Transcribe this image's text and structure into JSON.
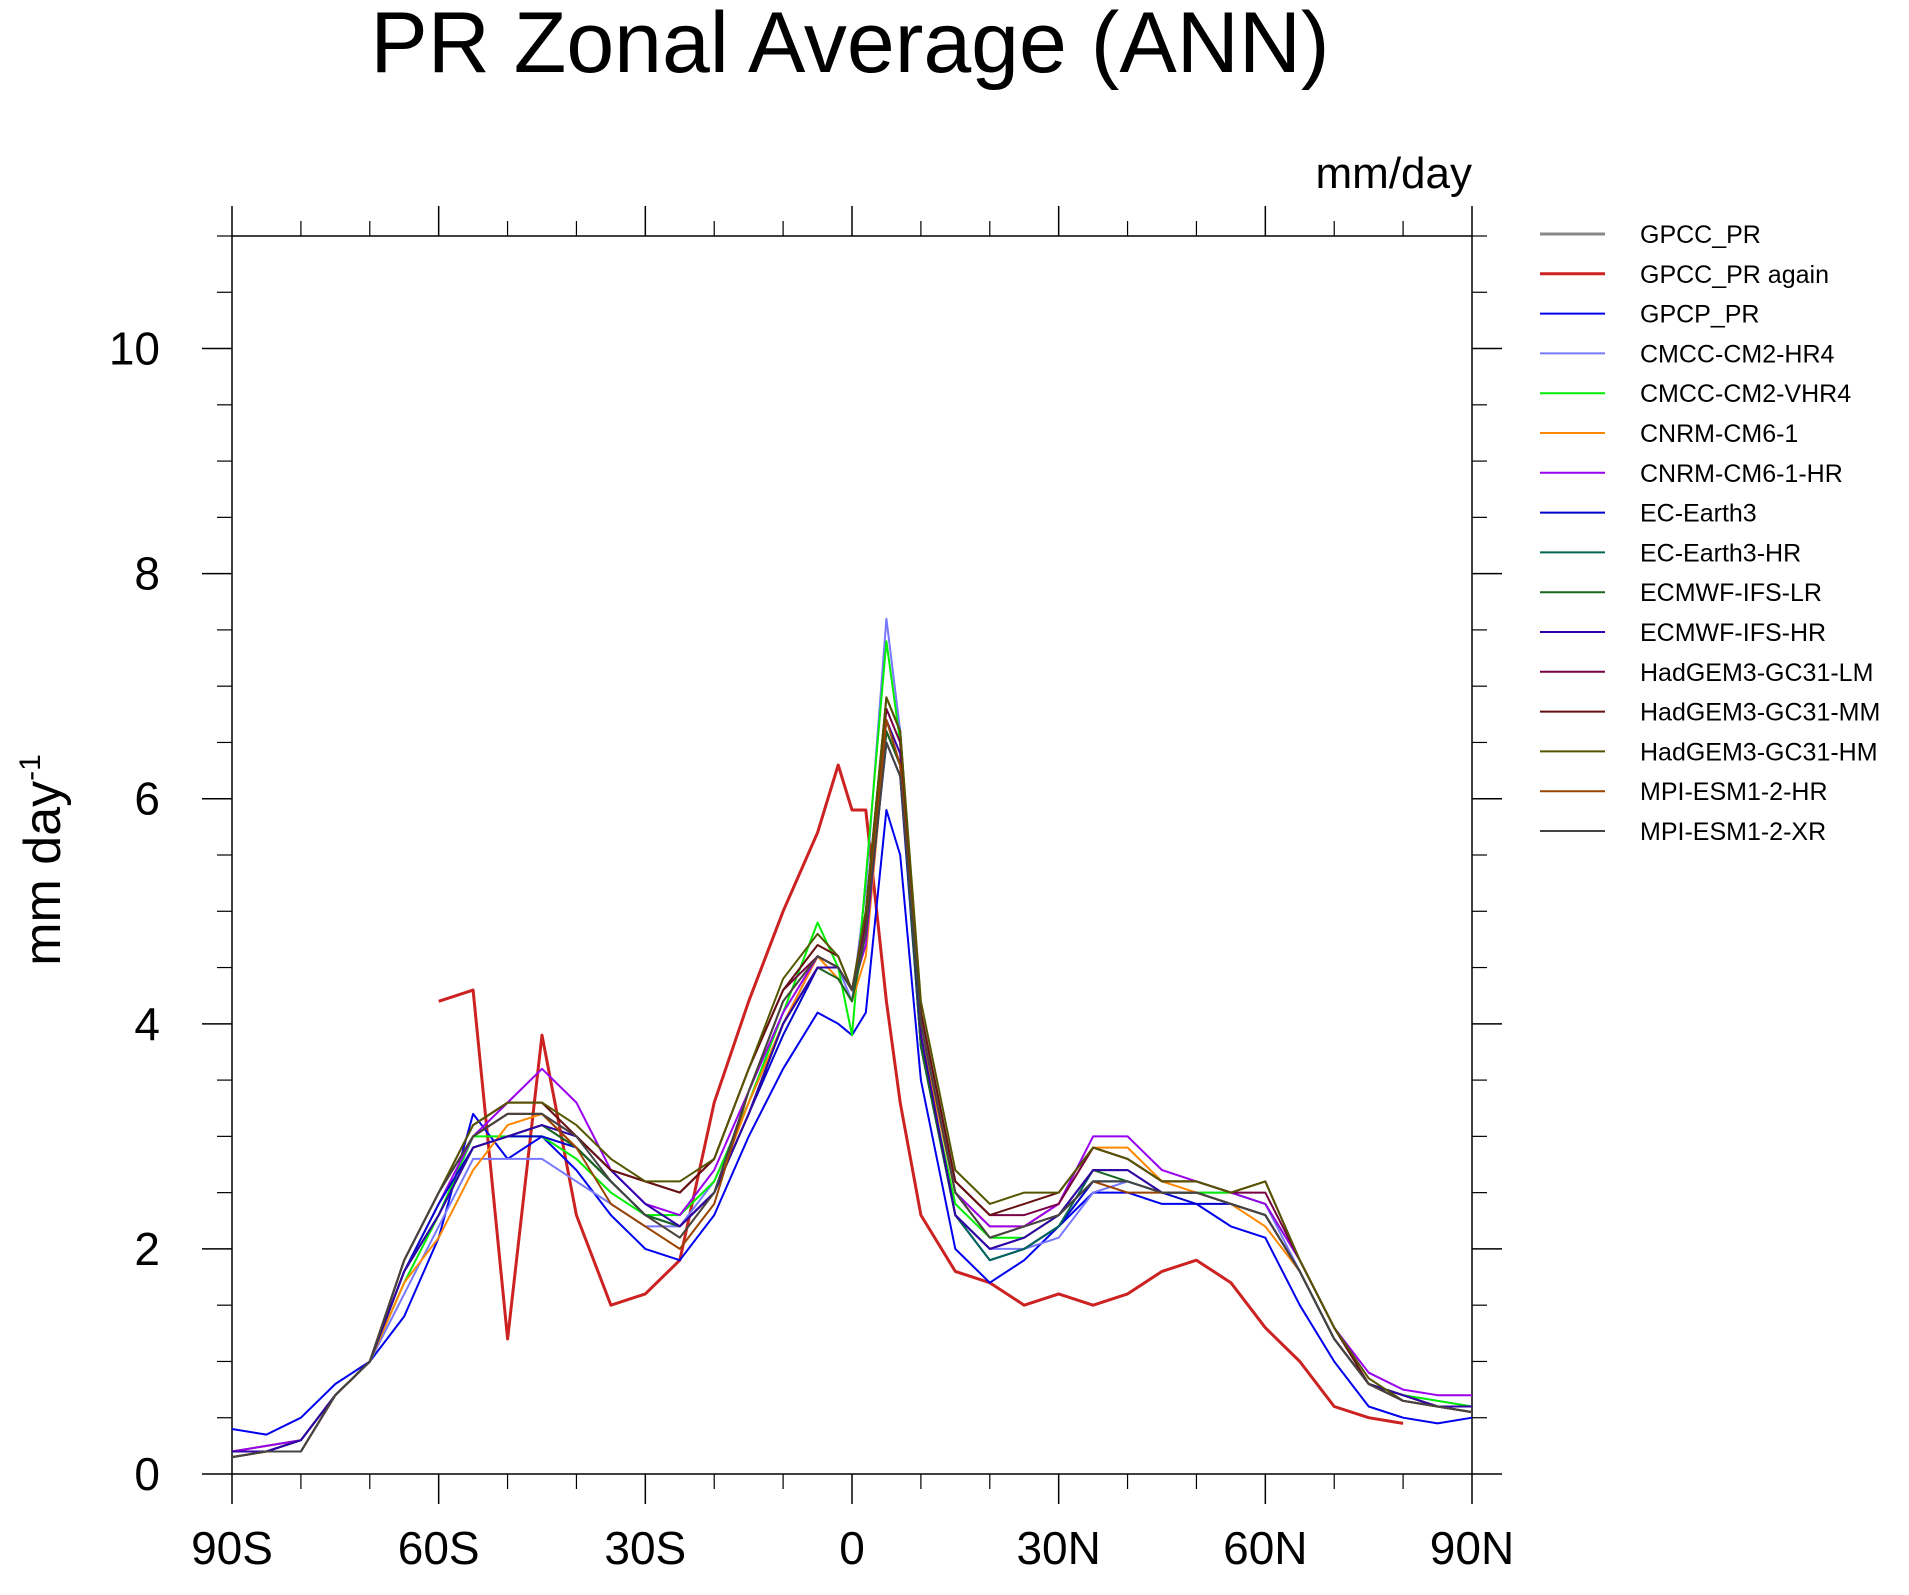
{
  "chart_data": {
    "type": "line",
    "title": "PR Zonal Average (ANN)",
    "units_label": "mm/day",
    "ylabel": "mm day",
    "ylabel_superscript": "-1",
    "xlabel": "",
    "xlim": [
      -90,
      90
    ],
    "ylim": [
      0,
      11
    ],
    "x_ticks": [
      {
        "value": -90,
        "label": "90S"
      },
      {
        "value": -60,
        "label": "60S"
      },
      {
        "value": -30,
        "label": "30S"
      },
      {
        "value": 0,
        "label": "0"
      },
      {
        "value": 30,
        "label": "30N"
      },
      {
        "value": 60,
        "label": "60N"
      },
      {
        "value": 90,
        "label": "90N"
      }
    ],
    "y_ticks": [
      {
        "value": 0,
        "label": "0"
      },
      {
        "value": 2,
        "label": "2"
      },
      {
        "value": 4,
        "label": "4"
      },
      {
        "value": 6,
        "label": "6"
      },
      {
        "value": 8,
        "label": "8"
      },
      {
        "value": 10,
        "label": "10"
      }
    ],
    "grid": false,
    "legend_position": "right",
    "x": [
      -90,
      -85,
      -80,
      -75,
      -70,
      -65,
      -60,
      -55,
      -50,
      -45,
      -40,
      -35,
      -30,
      -25,
      -20,
      -15,
      -10,
      -5,
      -2,
      0,
      2,
      5,
      7,
      10,
      15,
      20,
      25,
      30,
      35,
      40,
      45,
      50,
      55,
      60,
      65,
      70,
      75,
      80,
      85,
      90
    ],
    "series": [
      {
        "name": "GPCC_PR",
        "color": "#888888",
        "width": 3,
        "values": [
          null,
          null,
          null,
          null,
          null,
          null,
          null,
          null,
          null,
          null,
          null,
          null,
          null,
          null,
          null,
          null,
          null,
          null,
          null,
          null,
          null,
          null,
          null,
          null,
          null,
          null,
          null,
          null,
          null,
          null,
          null,
          null,
          null,
          null,
          null,
          null,
          null,
          null,
          null,
          null
        ]
      },
      {
        "name": "GPCC_PR again",
        "color": "#cc2222",
        "width": 3,
        "values": [
          null,
          null,
          null,
          null,
          null,
          null,
          4.2,
          4.3,
          1.2,
          3.9,
          2.3,
          1.5,
          1.6,
          1.9,
          3.3,
          4.2,
          5.0,
          5.7,
          6.3,
          5.9,
          5.9,
          4.2,
          3.3,
          2.3,
          1.8,
          1.7,
          1.5,
          1.6,
          1.5,
          1.6,
          1.8,
          1.9,
          1.7,
          1.3,
          1.0,
          0.6,
          0.5,
          0.45,
          null,
          null
        ]
      },
      {
        "name": "GPCP_PR",
        "color": "#0000ee",
        "width": 2,
        "values": [
          0.4,
          0.35,
          0.5,
          0.8,
          1.0,
          1.4,
          2.1,
          3.2,
          2.8,
          3.0,
          2.7,
          2.3,
          2.0,
          1.9,
          2.3,
          3.0,
          3.6,
          4.1,
          4.0,
          3.9,
          4.1,
          5.9,
          5.5,
          3.5,
          2.0,
          1.7,
          1.9,
          2.2,
          2.5,
          2.5,
          2.4,
          2.4,
          2.2,
          2.1,
          1.5,
          1.0,
          0.6,
          0.5,
          0.45,
          0.5
        ]
      },
      {
        "name": "CMCC-CM2-HR4",
        "color": "#7777ff",
        "width": 2,
        "values": [
          0.2,
          0.25,
          0.3,
          0.7,
          1.0,
          1.6,
          2.2,
          2.8,
          2.8,
          2.8,
          2.6,
          2.4,
          2.2,
          2.2,
          2.6,
          3.3,
          4.0,
          4.6,
          4.5,
          4.2,
          5.2,
          7.6,
          6.6,
          3.8,
          2.3,
          2.0,
          2.0,
          2.1,
          2.5,
          2.6,
          2.5,
          2.5,
          2.5,
          2.4,
          1.8,
          1.2,
          0.8,
          0.7,
          0.65,
          0.6
        ]
      },
      {
        "name": "CMCC-CM2-VHR4",
        "color": "#00ee00",
        "width": 2,
        "values": [
          0.2,
          0.25,
          0.3,
          0.7,
          1.0,
          1.7,
          2.3,
          3.0,
          3.0,
          3.0,
          2.8,
          2.5,
          2.3,
          2.3,
          2.6,
          3.3,
          4.1,
          4.9,
          4.5,
          3.9,
          5.3,
          7.4,
          6.5,
          3.8,
          2.4,
          2.1,
          2.1,
          2.3,
          2.6,
          2.6,
          2.5,
          2.5,
          2.5,
          2.4,
          1.9,
          1.3,
          0.8,
          0.7,
          0.65,
          0.6
        ]
      },
      {
        "name": "CNRM-CM6-1",
        "color": "#ff8800",
        "width": 2,
        "values": [
          0.2,
          0.25,
          0.3,
          0.7,
          1.0,
          1.7,
          2.1,
          2.7,
          3.1,
          3.2,
          2.9,
          2.6,
          2.3,
          2.1,
          2.5,
          3.3,
          4.0,
          4.6,
          4.4,
          4.2,
          4.6,
          6.6,
          6.3,
          3.9,
          2.5,
          2.2,
          2.2,
          2.4,
          2.9,
          2.9,
          2.6,
          2.5,
          2.4,
          2.2,
          1.8,
          1.2,
          0.8,
          0.7,
          0.6,
          0.6
        ]
      },
      {
        "name": "CNRM-CM6-1-HR",
        "color": "#9900ee",
        "width": 2,
        "values": [
          0.2,
          0.25,
          0.3,
          0.7,
          1.0,
          1.8,
          2.4,
          3.0,
          3.3,
          3.6,
          3.3,
          2.7,
          2.4,
          2.3,
          2.7,
          3.4,
          4.1,
          4.6,
          4.5,
          4.3,
          4.7,
          6.6,
          6.3,
          4.0,
          2.5,
          2.2,
          2.2,
          2.4,
          3.0,
          3.0,
          2.7,
          2.6,
          2.5,
          2.4,
          1.9,
          1.3,
          0.9,
          0.75,
          0.7,
          0.7
        ]
      },
      {
        "name": "EC-Earth3",
        "color": "#0000cc",
        "width": 2,
        "values": [
          0.2,
          0.2,
          0.3,
          0.7,
          1.0,
          1.8,
          2.4,
          2.9,
          3.0,
          3.0,
          2.9,
          2.6,
          2.3,
          2.2,
          2.5,
          3.2,
          3.9,
          4.5,
          4.5,
          4.3,
          4.8,
          6.5,
          6.2,
          3.8,
          2.3,
          1.9,
          2.0,
          2.2,
          2.6,
          2.6,
          2.5,
          2.4,
          2.4,
          2.3,
          1.8,
          1.2,
          0.8,
          0.65,
          0.6,
          0.55
        ]
      },
      {
        "name": "EC-Earth3-HR",
        "color": "#006655",
        "width": 2,
        "values": [
          0.2,
          0.2,
          0.3,
          0.7,
          1.0,
          1.8,
          2.3,
          2.9,
          3.0,
          3.1,
          2.9,
          2.6,
          2.3,
          2.2,
          2.5,
          3.2,
          4.0,
          4.5,
          4.5,
          4.3,
          4.9,
          6.6,
          6.3,
          3.8,
          2.3,
          1.9,
          2.0,
          2.2,
          2.7,
          2.7,
          2.5,
          2.5,
          2.4,
          2.3,
          1.8,
          1.2,
          0.8,
          0.7,
          0.6,
          0.6
        ]
      },
      {
        "name": "ECMWF-IFS-LR",
        "color": "#1a6620",
        "width": 2,
        "values": [
          0.2,
          0.2,
          0.3,
          0.7,
          1.0,
          1.8,
          2.3,
          2.9,
          3.0,
          3.1,
          2.9,
          2.6,
          2.3,
          2.2,
          2.5,
          3.2,
          4.0,
          4.5,
          4.4,
          4.2,
          4.8,
          6.6,
          6.3,
          3.8,
          2.3,
          2.0,
          2.1,
          2.3,
          2.7,
          2.6,
          2.5,
          2.5,
          2.4,
          2.3,
          1.8,
          1.2,
          0.8,
          0.7,
          0.6,
          0.6
        ]
      },
      {
        "name": "ECMWF-IFS-HR",
        "color": "#3300aa",
        "width": 2,
        "values": [
          0.2,
          0.2,
          0.3,
          0.7,
          1.0,
          1.8,
          2.3,
          2.9,
          3.0,
          3.1,
          3.0,
          2.7,
          2.4,
          2.2,
          2.5,
          3.2,
          4.0,
          4.5,
          4.5,
          4.3,
          4.9,
          6.7,
          6.4,
          3.9,
          2.3,
          2.0,
          2.1,
          2.3,
          2.7,
          2.7,
          2.5,
          2.5,
          2.4,
          2.3,
          1.8,
          1.2,
          0.8,
          0.7,
          0.6,
          0.6
        ]
      },
      {
        "name": "HadGEM3-GC31-LM",
        "color": "#770044",
        "width": 2,
        "values": [
          0.15,
          0.2,
          0.2,
          0.7,
          1.0,
          1.9,
          2.5,
          3.0,
          3.2,
          3.2,
          3.0,
          2.7,
          2.6,
          2.5,
          2.8,
          3.6,
          4.3,
          4.6,
          4.5,
          4.3,
          4.9,
          6.8,
          6.5,
          4.1,
          2.6,
          2.3,
          2.3,
          2.4,
          2.9,
          2.8,
          2.6,
          2.6,
          2.5,
          2.5,
          1.9,
          1.3,
          0.8,
          0.65,
          0.6,
          0.55
        ]
      },
      {
        "name": "HadGEM3-GC31-MM",
        "color": "#661111",
        "width": 2,
        "values": [
          0.15,
          0.2,
          0.2,
          0.7,
          1.0,
          1.9,
          2.5,
          3.1,
          3.3,
          3.3,
          3.0,
          2.7,
          2.6,
          2.5,
          2.8,
          3.6,
          4.3,
          4.7,
          4.6,
          4.3,
          5.0,
          6.9,
          6.6,
          4.1,
          2.6,
          2.3,
          2.4,
          2.5,
          2.9,
          2.8,
          2.6,
          2.6,
          2.5,
          2.6,
          1.9,
          1.3,
          0.8,
          0.65,
          0.6,
          0.55
        ]
      },
      {
        "name": "HadGEM3-GC31-HM",
        "color": "#555500",
        "width": 2,
        "values": [
          0.15,
          0.2,
          0.2,
          0.7,
          1.0,
          1.9,
          2.5,
          3.1,
          3.3,
          3.3,
          3.1,
          2.8,
          2.6,
          2.6,
          2.8,
          3.6,
          4.4,
          4.8,
          4.6,
          4.3,
          5.0,
          6.9,
          6.6,
          4.2,
          2.7,
          2.4,
          2.5,
          2.5,
          2.9,
          2.8,
          2.6,
          2.6,
          2.5,
          2.6,
          1.9,
          1.3,
          0.85,
          0.65,
          0.6,
          0.55
        ]
      },
      {
        "name": "MPI-ESM1-2-HR",
        "color": "#994400",
        "width": 2,
        "values": [
          0.15,
          0.2,
          0.2,
          0.7,
          1.0,
          1.9,
          2.5,
          3.0,
          3.2,
          3.2,
          2.9,
          2.4,
          2.2,
          2.0,
          2.4,
          3.4,
          4.2,
          4.6,
          4.5,
          4.3,
          4.8,
          6.7,
          6.3,
          4.0,
          2.5,
          2.1,
          2.2,
          2.3,
          2.6,
          2.5,
          2.5,
          2.5,
          2.4,
          2.3,
          1.8,
          1.2,
          0.8,
          0.65,
          0.6,
          0.55
        ]
      },
      {
        "name": "MPI-ESM1-2-XR",
        "color": "#444444",
        "width": 2,
        "values": [
          0.15,
          0.2,
          0.2,
          0.7,
          1.0,
          1.9,
          2.5,
          3.0,
          3.2,
          3.2,
          3.0,
          2.6,
          2.3,
          2.1,
          2.5,
          3.4,
          4.2,
          4.6,
          4.5,
          4.3,
          4.8,
          6.5,
          6.2,
          4.0,
          2.5,
          2.1,
          2.2,
          2.3,
          2.6,
          2.6,
          2.5,
          2.5,
          2.4,
          2.3,
          1.8,
          1.2,
          0.8,
          0.65,
          0.6,
          0.55
        ]
      }
    ]
  }
}
